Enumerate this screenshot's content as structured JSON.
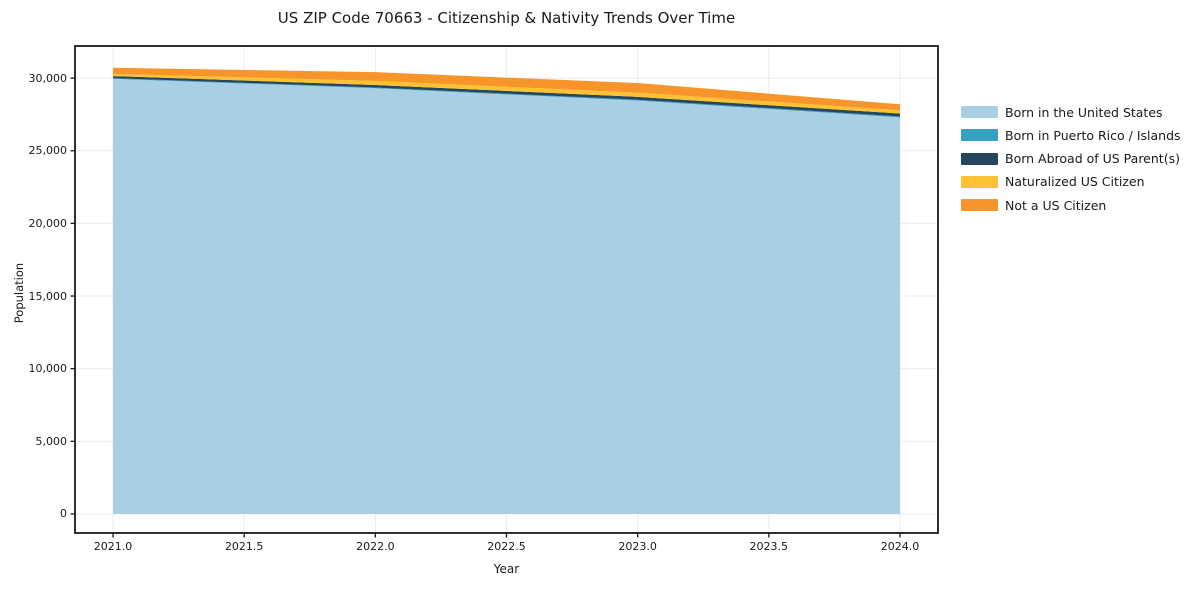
{
  "chart_data": {
    "type": "area",
    "stacked": true,
    "title": "US ZIP Code 70663 - Citizenship & Nativity Trends Over Time",
    "xlabel": "Year",
    "ylabel": "Population",
    "x": [
      2021,
      2022,
      2023,
      2024
    ],
    "series": [
      {
        "name": "Born in the United States",
        "color": "#a8cfe4",
        "values": [
          29950,
          29300,
          28450,
          27300
        ]
      },
      {
        "name": "Born in Puerto Rico / Islands",
        "color": "#3aa0c2",
        "values": [
          50,
          50,
          60,
          60
        ]
      },
      {
        "name": "Born Abroad of US Parent(s)",
        "color": "#25465c",
        "values": [
          140,
          180,
          200,
          200
        ]
      },
      {
        "name": "Naturalized US Citizen",
        "color": "#fcc233",
        "values": [
          150,
          280,
          290,
          220
        ]
      },
      {
        "name": "Not a US Citizen",
        "color": "#f7952a",
        "values": [
          420,
          600,
          660,
          420
        ]
      }
    ],
    "stacked_totals": [
      30710,
      30410,
      29660,
      28200
    ],
    "xticks": {
      "values": [
        2021.0,
        2021.5,
        2022.0,
        2022.5,
        2023.0,
        2023.5,
        2024.0
      ],
      "labels": [
        "2021.0",
        "2021.5",
        "2022.0",
        "2022.5",
        "2023.0",
        "2023.5",
        "2024.0"
      ]
    },
    "yticks": {
      "values": [
        0,
        5000,
        10000,
        15000,
        20000,
        25000,
        30000
      ],
      "labels": [
        "0",
        "5,000",
        "10,000",
        "15,000",
        "20,000",
        "25,000",
        "30,000"
      ]
    },
    "xlim": [
      2020.855,
      2024.145
    ],
    "ylim": [
      -1310,
      32210
    ],
    "grid": true,
    "legend_position": "right-outside-center",
    "colors": {
      "grid": "#ececec",
      "spine": "#1a1a1a",
      "text": "#1a1a1a",
      "background": "#ffffff"
    }
  }
}
